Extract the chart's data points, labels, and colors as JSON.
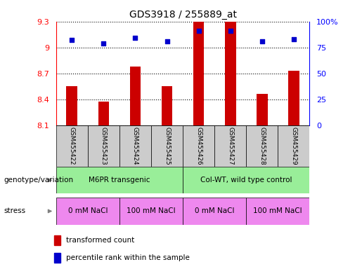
{
  "title": "GDS3918 / 255889_at",
  "samples": [
    "GSM455422",
    "GSM455423",
    "GSM455424",
    "GSM455425",
    "GSM455426",
    "GSM455427",
    "GSM455428",
    "GSM455429"
  ],
  "bar_values": [
    8.55,
    8.37,
    8.78,
    8.55,
    9.3,
    9.3,
    8.46,
    8.73
  ],
  "dot_values": [
    82,
    79,
    84,
    81,
    91,
    91,
    81,
    83
  ],
  "ymin": 8.1,
  "ymax": 9.3,
  "y2min": 0,
  "y2max": 100,
  "yticks": [
    8.1,
    8.4,
    8.7,
    9.0,
    9.3
  ],
  "ytick_labels": [
    "8.1",
    "8.4",
    "8.7",
    "9",
    "9.3"
  ],
  "y2ticks": [
    0,
    25,
    50,
    75,
    100
  ],
  "y2tick_labels": [
    "0",
    "25",
    "50",
    "75",
    "100%"
  ],
  "bar_color": "#cc0000",
  "dot_color": "#0000cc",
  "bar_width": 0.35,
  "genotype_groups": [
    {
      "label": "M6PR transgenic",
      "start": 0,
      "end": 4,
      "color": "#99ee99"
    },
    {
      "label": "Col-WT, wild type control",
      "start": 4,
      "end": 8,
      "color": "#99ee99"
    }
  ],
  "stress_groups": [
    {
      "label": "0 mM NaCl",
      "start": 0,
      "end": 2,
      "color": "#ee88ee"
    },
    {
      "label": "100 mM NaCl",
      "start": 2,
      "end": 4,
      "color": "#ee88ee"
    },
    {
      "label": "0 mM NaCl",
      "start": 4,
      "end": 6,
      "color": "#ee88ee"
    },
    {
      "label": "100 mM NaCl",
      "start": 6,
      "end": 8,
      "color": "#ee88ee"
    }
  ],
  "legend_bar_label": "transformed count",
  "legend_dot_label": "percentile rank within the sample",
  "genotype_label": "genotype/variation",
  "stress_label": "stress",
  "sample_box_color": "#cccccc",
  "grid_color": "#000000",
  "title_fontsize": 10,
  "tick_fontsize": 8,
  "label_fontsize": 7.5,
  "sample_fontsize": 6.5,
  "legend_fontsize": 7.5
}
